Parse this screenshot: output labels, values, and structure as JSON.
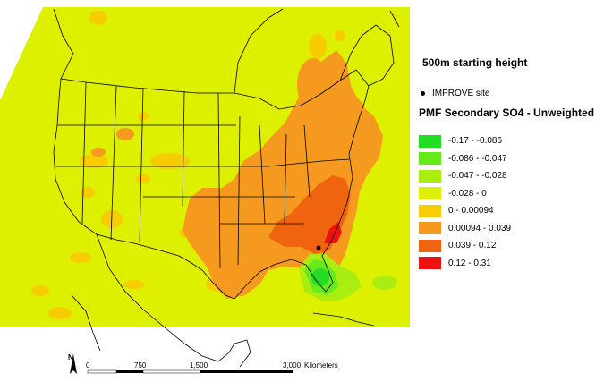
{
  "map": {
    "subtitle": "500m starting height",
    "site_label": "IMPROVE site",
    "legend_title": "PMF Secondary SO4 - Unweighted",
    "legend": [
      {
        "label": "-0.17 - -0.086",
        "color": "#22dd22"
      },
      {
        "label": "-0.086 - -0.047",
        "color": "#66ea1c"
      },
      {
        "label": "-0.047 - -0.028",
        "color": "#aaee11"
      },
      {
        "label": "-0.028 - 0",
        "color": "#ddf000"
      },
      {
        "label": "0 - 0.00094",
        "color": "#f7cc00"
      },
      {
        "label": "0.00094 - 0.039",
        "color": "#f59a1f"
      },
      {
        "label": "0.039 - 0.12",
        "color": "#f06410"
      },
      {
        "label": "0.12 - 0.31",
        "color": "#ee1111"
      }
    ],
    "scale": {
      "ticks": [
        "0",
        "750",
        "1,500",
        "3,000"
      ],
      "unit": "Kilometers"
    },
    "north_label": "N"
  }
}
